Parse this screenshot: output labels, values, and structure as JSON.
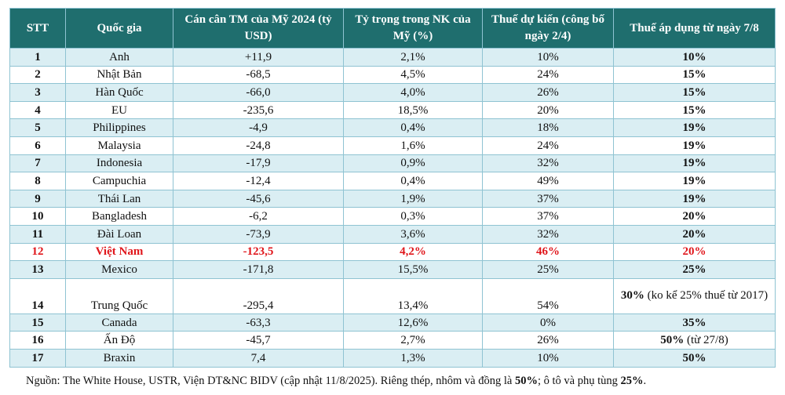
{
  "headers": [
    "STT",
    "Quốc gia",
    "Cán cân TM của Mỹ 2024 (tỷ USD)",
    "Tỷ trọng trong NK của Mỹ (%)",
    "Thuế dự kiến (công bố ngày 2/4)",
    "Thuế áp dụng từ ngày 7/8"
  ],
  "rows": [
    [
      "1",
      "Anh",
      "+11,9",
      "2,1%",
      "10%",
      "10%"
    ],
    [
      "2",
      "Nhật Bản",
      "-68,5",
      "4,5%",
      "24%",
      "15%"
    ],
    [
      "3",
      "Hàn Quốc",
      "-66,0",
      "4,0%",
      "26%",
      "15%"
    ],
    [
      "4",
      "EU",
      "-235,6",
      "18,5%",
      "20%",
      "15%"
    ],
    [
      "5",
      "Philippines",
      "-4,9",
      "0,4%",
      "18%",
      "19%"
    ],
    [
      "6",
      "Malaysia",
      "-24,8",
      "1,6%",
      "24%",
      "19%"
    ],
    [
      "7",
      "Indonesia",
      "-17,9",
      "0,9%",
      "32%",
      "19%"
    ],
    [
      "8",
      "Campuchia",
      "-12,4",
      "0,4%",
      "49%",
      "19%"
    ],
    [
      "9",
      "Thái Lan",
      "-45,6",
      "1,9%",
      "37%",
      "19%"
    ],
    [
      "10",
      "Bangladesh",
      "-6,2",
      "0,3%",
      "37%",
      "20%"
    ],
    [
      "11",
      "Đài Loan",
      "-73,9",
      "3,6%",
      "32%",
      "20%"
    ],
    [
      "12",
      "Việt Nam",
      "-123,5",
      "4,2%",
      "46%",
      "20%"
    ],
    [
      "13",
      "Mexico",
      "-171,8",
      "15,5%",
      "25%",
      "25%"
    ],
    [
      "14",
      "Trung Quốc",
      "-295,4",
      "13,4%",
      "54%",
      "30%"
    ],
    [
      "15",
      "Canada",
      "-63,3",
      "12,6%",
      "0%",
      "35%"
    ],
    [
      "16",
      "Ấn Độ",
      "-45,7",
      "2,7%",
      "26%",
      "50%"
    ],
    [
      "17",
      "Braxin",
      "7,4",
      "1,3%",
      "10%",
      "50%"
    ]
  ],
  "notes": {
    "14": " (ko kể 25% thuế từ 2017)",
    "16": " (từ 27/8)"
  },
  "highlight_row": "12",
  "highlight_color": "#e0161b",
  "header_color": "#1f6e6e",
  "footer": {
    "prefix": "Nguồn: The White House, USTR, Viện DT&NC BIDV (cập nhật 11/8/2025). Riêng thép, nhôm và đồng là ",
    "b1": "50%",
    "mid": "; ô tô và phụ tùng ",
    "b2": "25%",
    "end": "."
  }
}
